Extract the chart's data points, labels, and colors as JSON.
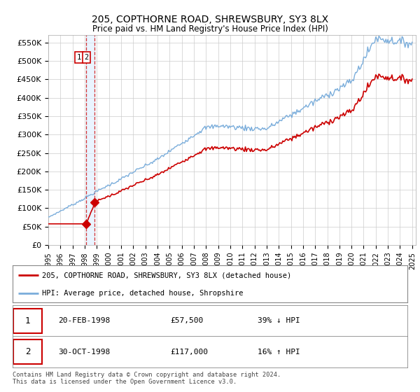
{
  "title": "205, COPTHORNE ROAD, SHREWSBURY, SY3 8LX",
  "subtitle": "Price paid vs. HM Land Registry's House Price Index (HPI)",
  "ylabel_ticks": [
    "£0",
    "£50K",
    "£100K",
    "£150K",
    "£200K",
    "£250K",
    "£300K",
    "£350K",
    "£400K",
    "£450K",
    "£500K",
    "£550K"
  ],
  "ytick_values": [
    0,
    50000,
    100000,
    150000,
    200000,
    250000,
    300000,
    350000,
    400000,
    450000,
    500000,
    550000
  ],
  "ylim": [
    0,
    570000
  ],
  "xlim_start": 1995.0,
  "xlim_end": 2025.3,
  "xtick_years": [
    1995,
    1996,
    1997,
    1998,
    1999,
    2000,
    2001,
    2002,
    2003,
    2004,
    2005,
    2006,
    2007,
    2008,
    2009,
    2010,
    2011,
    2012,
    2013,
    2014,
    2015,
    2016,
    2017,
    2018,
    2019,
    2020,
    2021,
    2022,
    2023,
    2024,
    2025
  ],
  "sale1_x": 1998.12,
  "sale1_y": 57500,
  "sale2_x": 1998.83,
  "sale2_y": 117000,
  "sale_color": "#cc0000",
  "hpi_color": "#7aaddb",
  "vline_color": "#cc0000",
  "legend_entry1": "205, COPTHORNE ROAD, SHREWSBURY, SY3 8LX (detached house)",
  "legend_entry2": "HPI: Average price, detached house, Shropshire",
  "table_row1_date": "20-FEB-1998",
  "table_row1_price": "£57,500",
  "table_row1_hpi": "39% ↓ HPI",
  "table_row2_date": "30-OCT-1998",
  "table_row2_price": "£117,000",
  "table_row2_hpi": "16% ↑ HPI",
  "footer": "Contains HM Land Registry data © Crown copyright and database right 2024.\nThis data is licensed under the Open Government Licence v3.0.",
  "background_color": "#ffffff",
  "plot_bg_color": "#ffffff",
  "grid_color": "#cccccc"
}
